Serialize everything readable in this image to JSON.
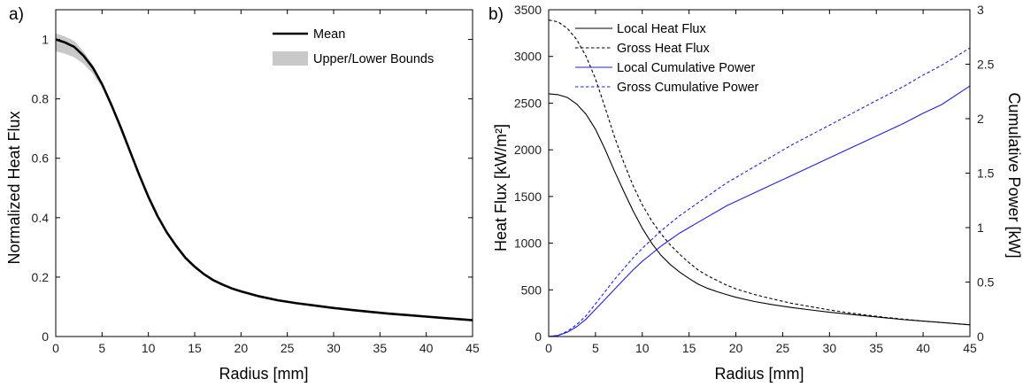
{
  "chart_data": [
    {
      "panel": "a)",
      "type": "line",
      "xlabel": "Radius [mm]",
      "ylabel": "Normalized Heat Flux",
      "xlim": [
        0,
        45
      ],
      "ylim": [
        0,
        1.1
      ],
      "xticks": [
        0,
        5,
        10,
        15,
        20,
        25,
        30,
        35,
        40,
        45
      ],
      "yticks": [
        0,
        0.2,
        0.4,
        0.6,
        0.8,
        1
      ],
      "grid": false,
      "legend": "top-right",
      "x": [
        0,
        1,
        2,
        3,
        4,
        5,
        6,
        7,
        8,
        9,
        10,
        11,
        12,
        13,
        14,
        15,
        16,
        17,
        18,
        19,
        20,
        22,
        24,
        26,
        28,
        30,
        32,
        34,
        36,
        38,
        40,
        42,
        45
      ],
      "series": [
        {
          "name": "Mean",
          "color": "#000000",
          "values": [
            1.0,
            0.99,
            0.975,
            0.945,
            0.905,
            0.85,
            0.78,
            0.705,
            0.625,
            0.545,
            0.47,
            0.405,
            0.35,
            0.305,
            0.265,
            0.235,
            0.21,
            0.19,
            0.175,
            0.162,
            0.152,
            0.135,
            0.122,
            0.112,
            0.104,
            0.096,
            0.089,
            0.083,
            0.077,
            0.072,
            0.067,
            0.062,
            0.055
          ]
        },
        {
          "name": "Upper/Lower Bounds",
          "type": "band",
          "color": "#c8c8c8",
          "upper": [
            1.02,
            1.01,
            0.995,
            0.96,
            0.915,
            0.856,
            0.785,
            0.708,
            0.627,
            0.546,
            0.471,
            0.405,
            0.35,
            0.305,
            0.265,
            0.235,
            0.21,
            0.19,
            0.175,
            0.162,
            0.152,
            0.135,
            0.122,
            0.112,
            0.104,
            0.096,
            0.089,
            0.083,
            0.077,
            0.072,
            0.067,
            0.062,
            0.055
          ],
          "lower": [
            0.96,
            0.952,
            0.94,
            0.918,
            0.885,
            0.838,
            0.772,
            0.7,
            0.622,
            0.543,
            0.469,
            0.405,
            0.35,
            0.305,
            0.265,
            0.235,
            0.21,
            0.19,
            0.175,
            0.162,
            0.152,
            0.135,
            0.122,
            0.112,
            0.104,
            0.096,
            0.089,
            0.083,
            0.077,
            0.072,
            0.067,
            0.062,
            0.055
          ]
        }
      ]
    },
    {
      "panel": "b)",
      "type": "line",
      "xlabel": "Radius [mm]",
      "ylabel": "Heat Flux [kW/m²]",
      "y2label": "Cumulative Power [kW]",
      "xlim": [
        0,
        45
      ],
      "ylim": [
        0,
        3500
      ],
      "y2lim": [
        0,
        3
      ],
      "xticks": [
        0,
        5,
        10,
        15,
        20,
        25,
        30,
        35,
        40,
        45
      ],
      "yticks": [
        0,
        500,
        1000,
        1500,
        2000,
        2500,
        3000,
        3500
      ],
      "y2ticks": [
        0,
        0.5,
        1,
        1.5,
        2,
        2.5,
        3
      ],
      "grid": false,
      "legend": "top-left",
      "x": [
        0,
        1,
        2,
        3,
        4,
        5,
        6,
        7,
        8,
        9,
        10,
        11,
        12,
        13,
        14,
        15,
        16,
        17,
        18,
        19,
        20,
        22,
        24,
        26,
        28,
        30,
        32,
        34,
        36,
        38,
        40,
        42,
        45
      ],
      "series": [
        {
          "name": "Local Heat Flux",
          "axis": "left",
          "color": "#000000",
          "dash": "solid",
          "values": [
            2600,
            2590,
            2560,
            2490,
            2380,
            2220,
            2010,
            1780,
            1560,
            1350,
            1160,
            1000,
            870,
            770,
            690,
            620,
            560,
            515,
            480,
            450,
            420,
            375,
            340,
            310,
            285,
            260,
            240,
            220,
            200,
            180,
            165,
            150,
            125
          ]
        },
        {
          "name": "Gross Heat Flux",
          "axis": "left",
          "color": "#000000",
          "dash": "dashed",
          "values": [
            3390,
            3370,
            3300,
            3180,
            3000,
            2760,
            2460,
            2150,
            1870,
            1620,
            1410,
            1240,
            1100,
            980,
            880,
            790,
            710,
            650,
            600,
            550,
            510,
            450,
            400,
            355,
            320,
            285,
            255,
            230,
            205,
            185,
            165,
            150,
            125
          ]
        },
        {
          "name": "Local Cumulative Power",
          "axis": "right",
          "color": "#2020dd",
          "dash": "solid",
          "values": [
            0,
            0.01,
            0.04,
            0.09,
            0.16,
            0.25,
            0.34,
            0.43,
            0.52,
            0.61,
            0.69,
            0.76,
            0.83,
            0.89,
            0.95,
            1.0,
            1.05,
            1.1,
            1.15,
            1.2,
            1.24,
            1.32,
            1.4,
            1.48,
            1.56,
            1.64,
            1.72,
            1.8,
            1.88,
            1.96,
            2.05,
            2.13,
            2.3
          ]
        },
        {
          "name": "Gross Cumulative Power",
          "axis": "right",
          "color": "#2020dd",
          "dash": "dashed",
          "values": [
            0,
            0.01,
            0.05,
            0.11,
            0.19,
            0.3,
            0.41,
            0.52,
            0.62,
            0.72,
            0.81,
            0.89,
            0.97,
            1.04,
            1.11,
            1.17,
            1.23,
            1.29,
            1.35,
            1.41,
            1.46,
            1.56,
            1.66,
            1.76,
            1.85,
            1.94,
            2.03,
            2.12,
            2.21,
            2.3,
            2.4,
            2.49,
            2.65
          ]
        }
      ]
    }
  ]
}
